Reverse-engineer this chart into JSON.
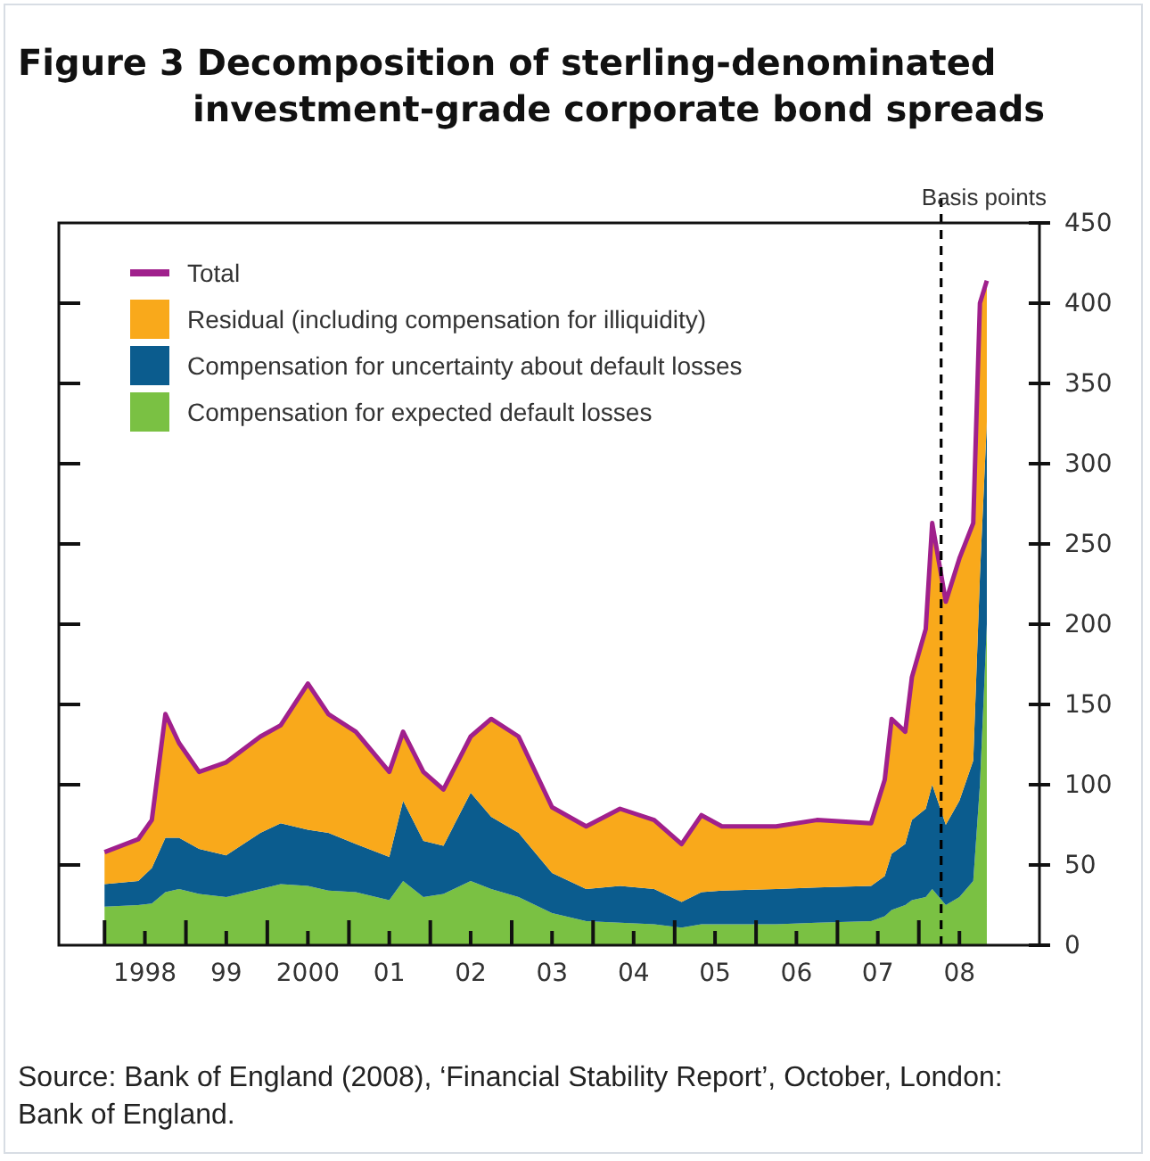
{
  "chart_data": {
    "type": "area",
    "stacked": true,
    "title": "Figure 3 Decomposition of sterling-denominated investment-grade corporate bond spreads",
    "ylabel": "Basis points",
    "annotations": [
      "Source: Bank of England (2008), ‘Financial Stability Report’, October, London: Bank of England."
    ],
    "x": [
      "1998-01",
      "1998-06",
      "1998-08",
      "1998-10",
      "1998-12",
      "1999-03",
      "1999-07",
      "1999-12",
      "2000-03",
      "2000-07",
      "2000-10",
      "2001-02",
      "2001-07",
      "2001-09",
      "2001-12",
      "2002-03",
      "2002-07",
      "2002-10",
      "2003-02",
      "2003-07",
      "2003-12",
      "2004-05",
      "2004-10",
      "2005-02",
      "2005-05",
      "2005-08",
      "2006-04",
      "2006-10",
      "2007-06",
      "2007-08",
      "2007-09",
      "2007-11",
      "2007-12",
      "2008-02",
      "2008-03",
      "2008-05",
      "2008-07",
      "2008-09",
      "2008-10",
      "2008-11"
    ],
    "series": [
      {
        "name": "Compensation for expected default losses",
        "color": "#7ac143",
        "values": [
          24,
          25,
          26,
          33,
          35,
          32,
          30,
          35,
          38,
          37,
          34,
          33,
          28,
          40,
          30,
          32,
          40,
          35,
          30,
          20,
          15,
          14,
          13,
          11,
          13,
          13,
          13,
          14,
          15,
          18,
          22,
          25,
          28,
          30,
          35,
          25,
          30,
          40,
          100,
          200
        ]
      },
      {
        "name": "Compensation for uncertainty about default losses",
        "color": "#0b5c8e",
        "values": [
          14,
          15,
          22,
          34,
          32,
          28,
          26,
          35,
          38,
          35,
          36,
          30,
          27,
          50,
          35,
          30,
          55,
          45,
          40,
          25,
          20,
          23,
          22,
          16,
          20,
          21,
          22,
          22,
          22,
          25,
          35,
          38,
          50,
          55,
          65,
          50,
          60,
          75,
          130,
          126
        ]
      },
      {
        "name": "Residual (including compensation for illiquidity)",
        "color": "#f9a91b",
        "values": [
          20,
          26,
          30,
          77,
          59,
          48,
          58,
          60,
          61,
          91,
          74,
          70,
          53,
          43,
          43,
          35,
          35,
          61,
          60,
          41,
          39,
          48,
          43,
          36,
          48,
          40,
          39,
          42,
          39,
          60,
          84,
          70,
          89,
          112,
          163,
          139,
          151,
          148,
          170,
          88
        ]
      },
      {
        "name": "Total",
        "type": "line",
        "color": "#a0208c",
        "values": [
          58,
          66,
          78,
          144,
          126,
          108,
          114,
          130,
          137,
          163,
          144,
          133,
          108,
          133,
          108,
          97,
          130,
          141,
          130,
          86,
          74,
          85,
          78,
          63,
          81,
          74,
          74,
          78,
          76,
          103,
          141,
          133,
          167,
          197,
          263,
          214,
          241,
          263,
          400,
          414
        ]
      }
    ],
    "legend": "top left",
    "xlim": [
      "1997-06-10",
      "2009-06-25"
    ],
    "xticks": [
      {
        "value": "1998-01",
        "label": null
      },
      {
        "value": "1998-07",
        "label": "1998"
      },
      {
        "value": "1999-01",
        "label": null
      },
      {
        "value": "1999-07",
        "label": "99"
      },
      {
        "value": "2000-01",
        "label": null
      },
      {
        "value": "2000-07",
        "label": "2000"
      },
      {
        "value": "2001-01",
        "label": null
      },
      {
        "value": "2001-07",
        "label": "01"
      },
      {
        "value": "2002-01",
        "label": null
      },
      {
        "value": "2002-07",
        "label": "02"
      },
      {
        "value": "2003-01",
        "label": null
      },
      {
        "value": "2003-07",
        "label": "03"
      },
      {
        "value": "2004-01",
        "label": null
      },
      {
        "value": "2004-07",
        "label": "04"
      },
      {
        "value": "2005-01",
        "label": null
      },
      {
        "value": "2005-07",
        "label": "05"
      },
      {
        "value": "2006-01",
        "label": null
      },
      {
        "value": "2006-07",
        "label": "06"
      },
      {
        "value": "2007-01",
        "label": null
      },
      {
        "value": "2007-07",
        "label": "07"
      },
      {
        "value": "2008-01",
        "label": null
      },
      {
        "value": "2008-07",
        "label": "08"
      }
    ],
    "ylim": [
      0,
      450
    ],
    "yticks": [
      0,
      50,
      100,
      150,
      200,
      250,
      300,
      350,
      400,
      450
    ],
    "ref_lines": [
      {
        "axis": "x",
        "value": "2008-04-10",
        "color": "#000000",
        "line_style": "dashed"
      }
    ]
  }
}
